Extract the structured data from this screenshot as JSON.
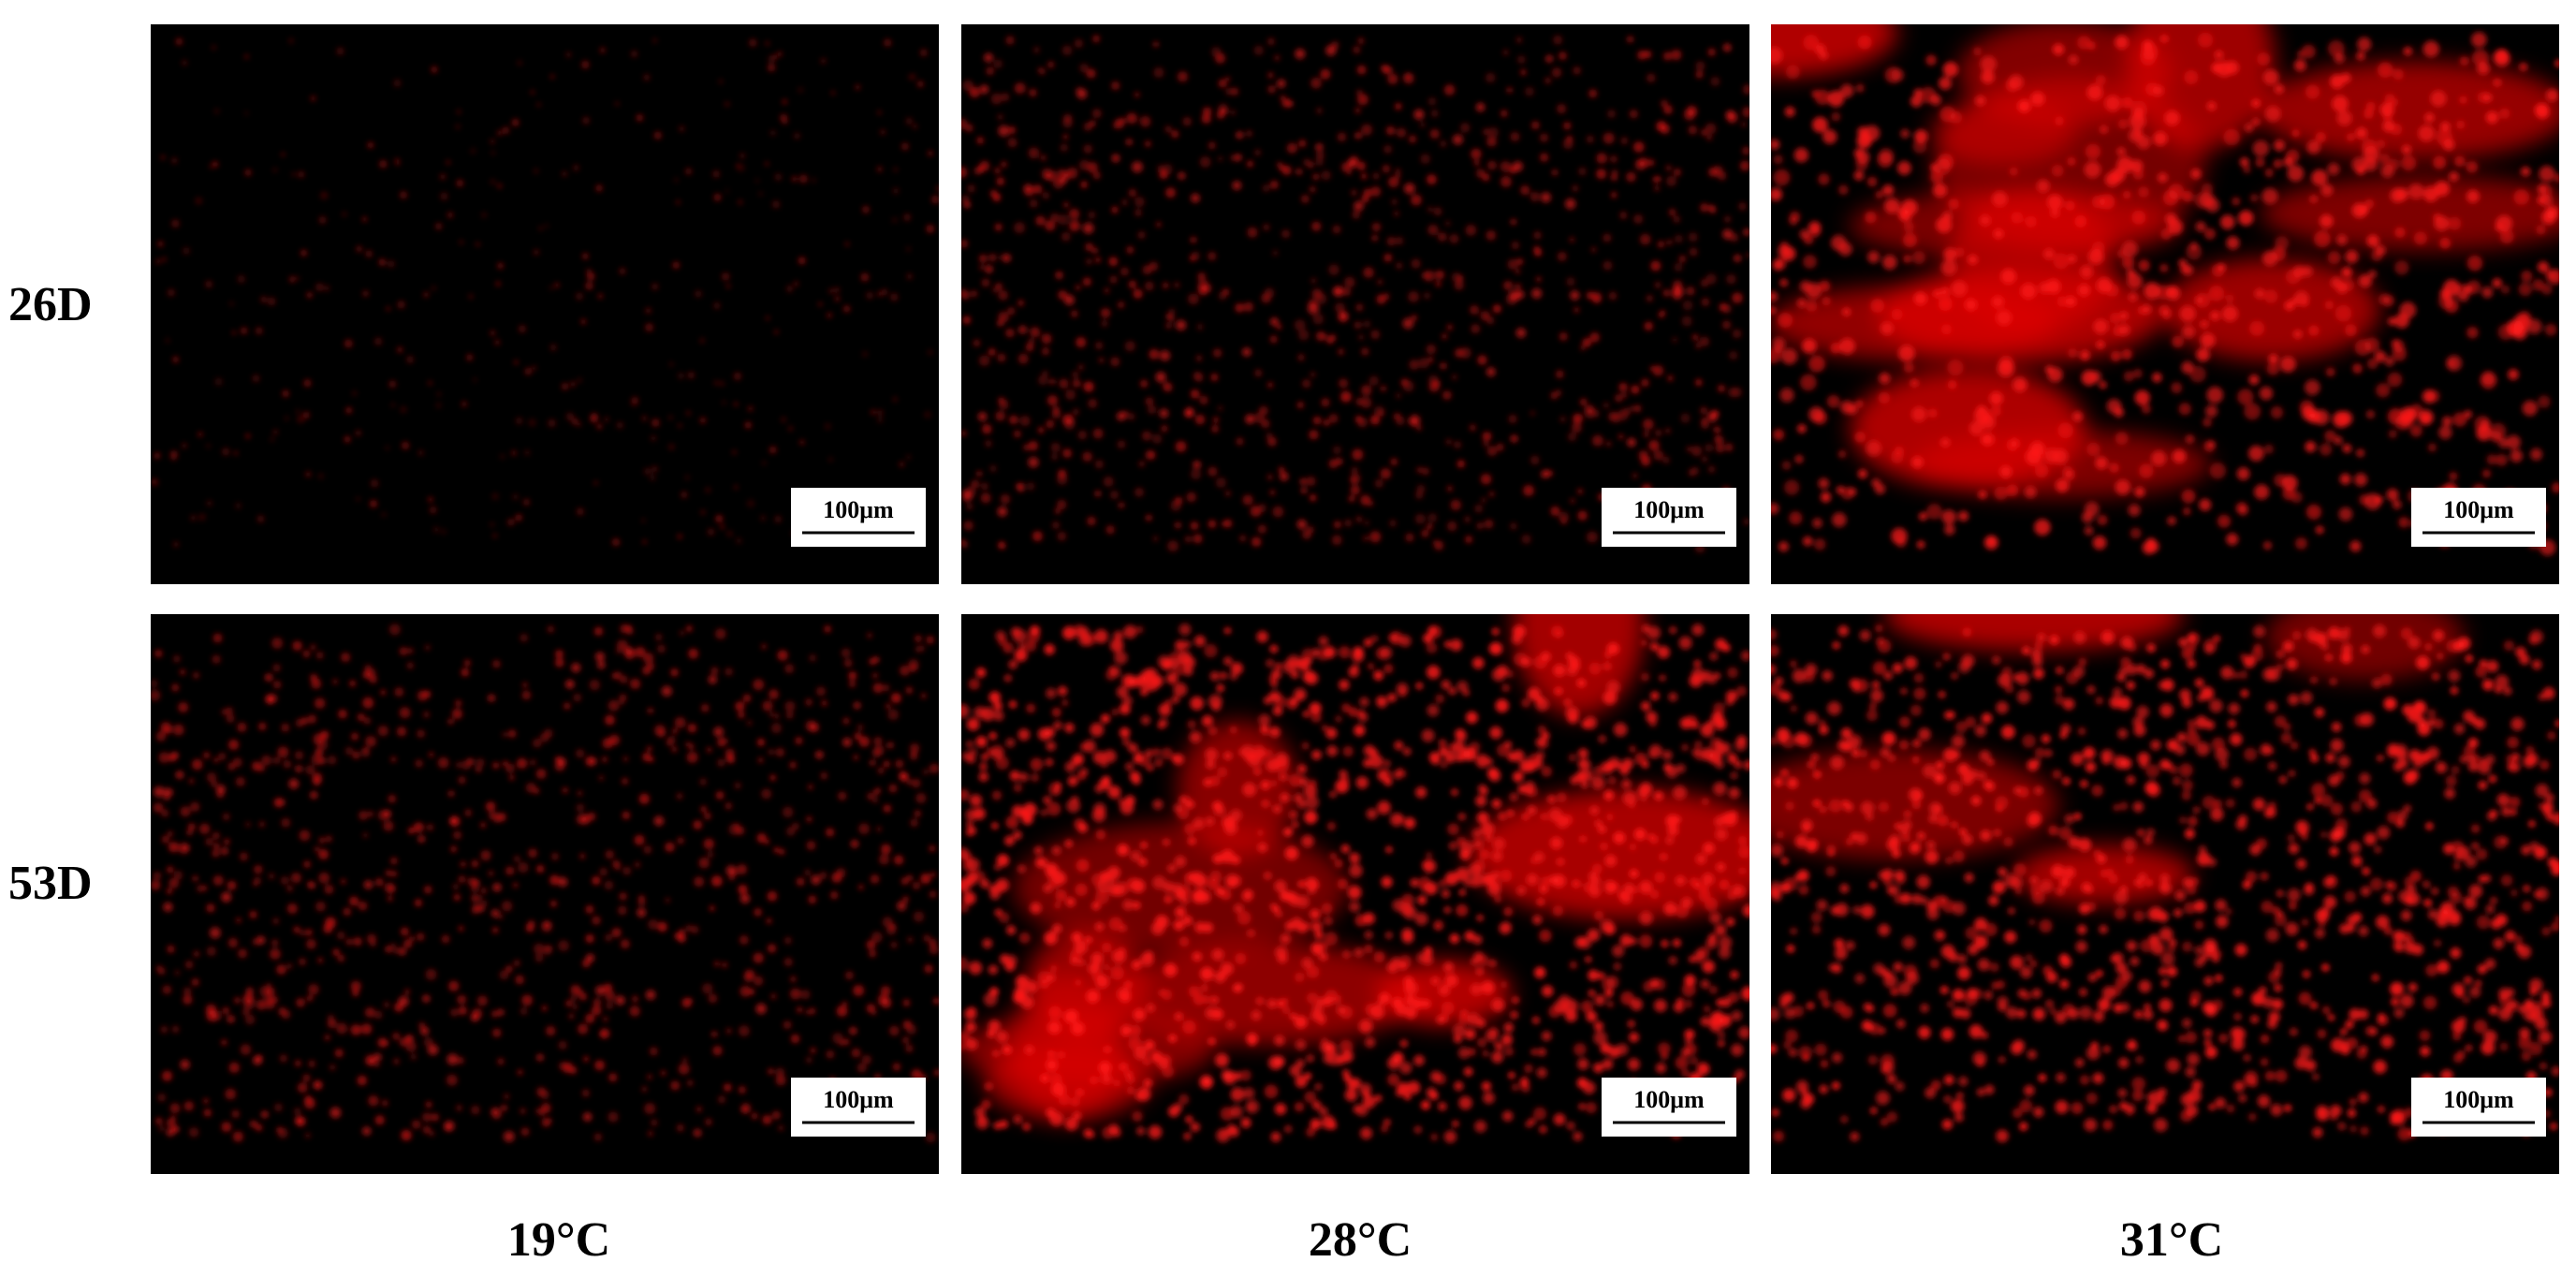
{
  "row_labels": [
    "26D",
    "53D"
  ],
  "column_labels": [
    "19°C",
    "28°C",
    "31°C"
  ],
  "panels": [
    [
      "100μm",
      "100μm",
      "100μm"
    ],
    [
      "100μm",
      "100μm",
      "100μm"
    ]
  ]
}
